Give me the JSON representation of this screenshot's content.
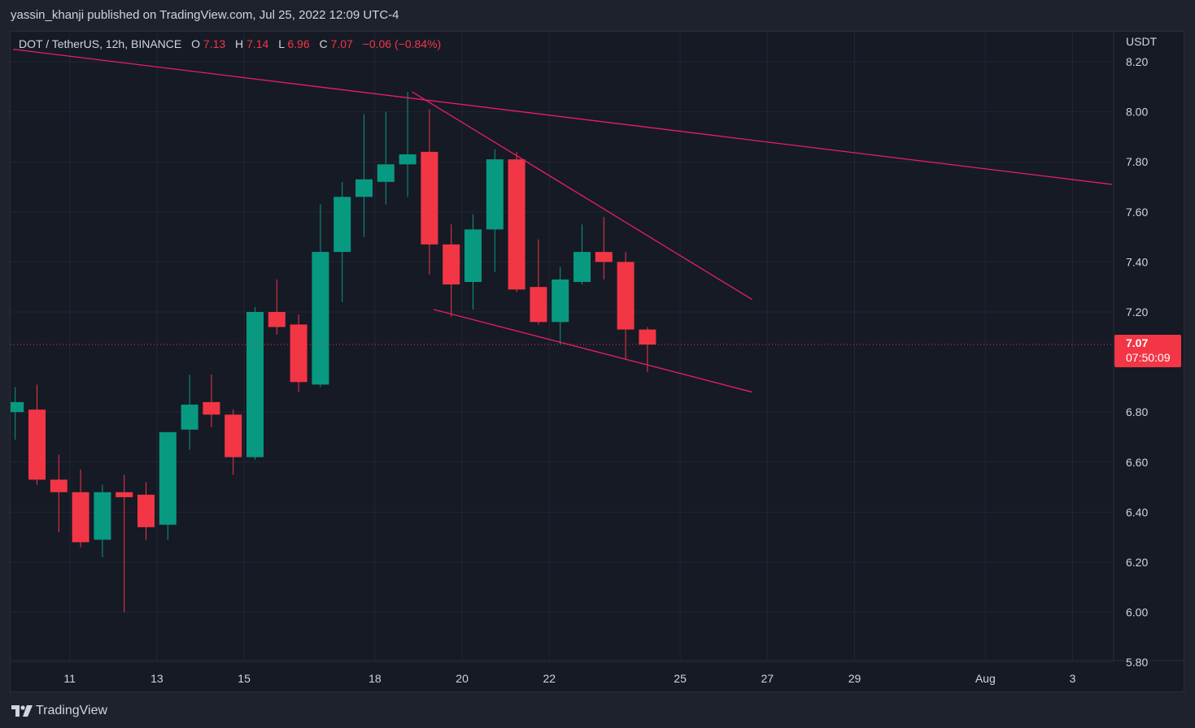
{
  "header": {
    "published": "yassin_khanji published on TradingView.com, Jul 25, 2022 12:09 UTC-4"
  },
  "legend": {
    "symbol": "DOT / TetherUS, 12h, BINANCE",
    "o_label": "O",
    "o_value": "7.13",
    "h_label": "H",
    "h_value": "7.14",
    "l_label": "L",
    "l_value": "6.96",
    "c_label": "C",
    "c_value": "7.07",
    "change": "−0.06 (−0.84%)"
  },
  "price_axis": {
    "currency": "USDT",
    "last_price": "7.07",
    "countdown": "07:50:09"
  },
  "footer": {
    "brand": "TradingView"
  },
  "colors": {
    "up": "#089981",
    "down": "#f23645",
    "trendline": "#e91e63",
    "grid": "#232632",
    "text": "#d1d4dc"
  },
  "chart_data": {
    "type": "candlestick",
    "ylim": [
      5.8,
      8.2
    ],
    "y_ticks": [
      "8.20",
      "8.00",
      "7.80",
      "7.60",
      "7.40",
      "7.20",
      "6.80",
      "6.60",
      "6.40",
      "6.20",
      "6.00",
      "5.80"
    ],
    "x_ticks": [
      {
        "label": "11",
        "x": 2.5
      },
      {
        "label": "13",
        "x": 6.5
      },
      {
        "label": "15",
        "x": 10.5
      },
      {
        "label": "18",
        "x": 16.5
      },
      {
        "label": "20",
        "x": 20.5
      },
      {
        "label": "22",
        "x": 24.5
      },
      {
        "label": "25",
        "x": 30.5
      },
      {
        "label": "27",
        "x": 34.5
      },
      {
        "label": "29",
        "x": 38.5
      },
      {
        "label": "Aug",
        "x": 44.5
      },
      {
        "label": "3",
        "x": 48.5
      }
    ],
    "candles": [
      {
        "o": 6.8,
        "h": 6.9,
        "l": 6.69,
        "c": 6.84
      },
      {
        "o": 6.81,
        "h": 6.91,
        "l": 6.51,
        "c": 6.53
      },
      {
        "o": 6.53,
        "h": 6.63,
        "l": 6.32,
        "c": 6.48
      },
      {
        "o": 6.48,
        "h": 6.57,
        "l": 6.26,
        "c": 6.28
      },
      {
        "o": 6.29,
        "h": 6.51,
        "l": 6.22,
        "c": 6.48
      },
      {
        "o": 6.48,
        "h": 6.55,
        "l": 6.0,
        "c": 6.46
      },
      {
        "o": 6.47,
        "h": 6.52,
        "l": 6.29,
        "c": 6.34
      },
      {
        "o": 6.35,
        "h": 6.72,
        "l": 6.29,
        "c": 6.72
      },
      {
        "o": 6.73,
        "h": 6.95,
        "l": 6.65,
        "c": 6.83
      },
      {
        "o": 6.84,
        "h": 6.95,
        "l": 6.74,
        "c": 6.79
      },
      {
        "o": 6.79,
        "h": 6.81,
        "l": 6.55,
        "c": 6.62
      },
      {
        "o": 6.62,
        "h": 7.22,
        "l": 6.61,
        "c": 7.2
      },
      {
        "o": 7.2,
        "h": 7.33,
        "l": 7.11,
        "c": 7.14
      },
      {
        "o": 7.15,
        "h": 7.19,
        "l": 6.88,
        "c": 6.92
      },
      {
        "o": 6.91,
        "h": 7.63,
        "l": 6.9,
        "c": 7.44
      },
      {
        "o": 7.44,
        "h": 7.72,
        "l": 7.24,
        "c": 7.66
      },
      {
        "o": 7.66,
        "h": 7.99,
        "l": 7.5,
        "c": 7.73
      },
      {
        "o": 7.72,
        "h": 8.0,
        "l": 7.63,
        "c": 7.79
      },
      {
        "o": 7.79,
        "h": 8.08,
        "l": 7.66,
        "c": 7.83
      },
      {
        "o": 7.84,
        "h": 8.01,
        "l": 7.35,
        "c": 7.47
      },
      {
        "o": 7.47,
        "h": 7.55,
        "l": 7.18,
        "c": 7.31
      },
      {
        "o": 7.32,
        "h": 7.59,
        "l": 7.21,
        "c": 7.53
      },
      {
        "o": 7.53,
        "h": 7.85,
        "l": 7.36,
        "c": 7.81
      },
      {
        "o": 7.81,
        "h": 7.84,
        "l": 7.28,
        "c": 7.29
      },
      {
        "o": 7.3,
        "h": 7.49,
        "l": 7.15,
        "c": 7.16
      },
      {
        "o": 7.16,
        "h": 7.38,
        "l": 7.07,
        "c": 7.33
      },
      {
        "o": 7.32,
        "h": 7.55,
        "l": 7.31,
        "c": 7.44
      },
      {
        "o": 7.44,
        "h": 7.58,
        "l": 7.33,
        "c": 7.4
      },
      {
        "o": 7.4,
        "h": 7.44,
        "l": 7.01,
        "c": 7.13
      },
      {
        "o": 7.13,
        "h": 7.14,
        "l": 6.96,
        "c": 7.07
      }
    ],
    "trendlines": [
      {
        "x1": -0.1,
        "y1": 8.25,
        "x2": 50.3,
        "y2": 7.71
      },
      {
        "x1": 18.2,
        "y1": 8.08,
        "x2": 33.8,
        "y2": 7.25
      },
      {
        "x1": 19.2,
        "y1": 7.21,
        "x2": 33.8,
        "y2": 6.88
      }
    ]
  }
}
